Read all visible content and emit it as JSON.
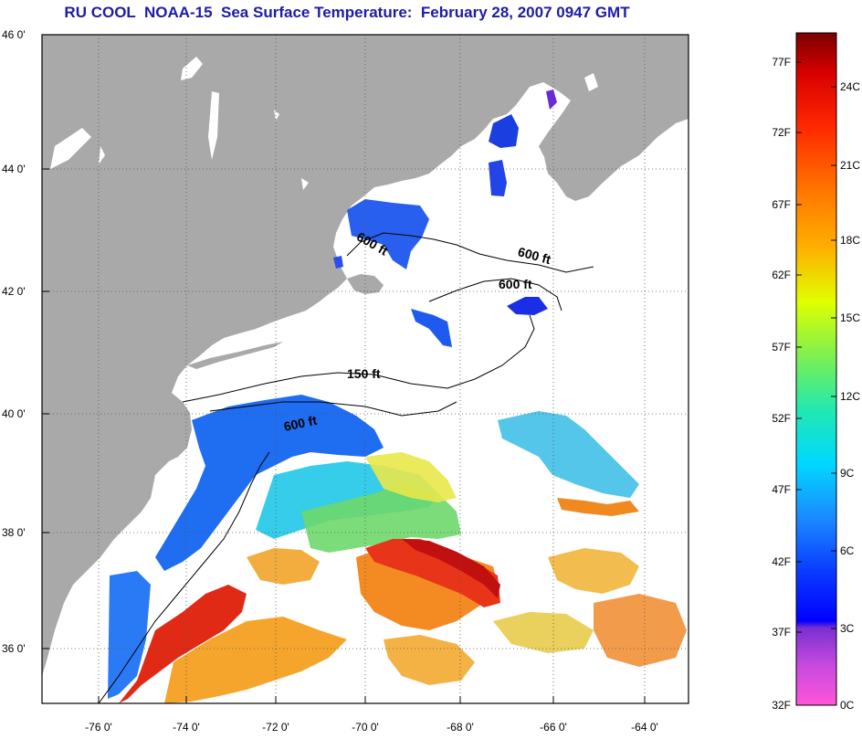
{
  "title": "RU COOL  NOAA-15  Sea Surface Temperature:  February 28, 2007 0947 GMT",
  "lat_labels": [
    "46 0'",
    "44 0'",
    "42 0'",
    "40 0'",
    "38 0'",
    "36 0'"
  ],
  "lon_labels": [
    "-76 0'",
    "-74 0'",
    "-72 0'",
    "-70 0'",
    "-68 0'",
    "-66 0'",
    "-64 0'"
  ],
  "contours": {
    "c1": "600 ft",
    "c2": "600 ft",
    "c3": "600 ft",
    "c4": "150 ft",
    "c5": "600 ft"
  },
  "colorbar": {
    "fahrenheit": [
      "77F",
      "72F",
      "67F",
      "62F",
      "57F",
      "52F",
      "47F",
      "42F",
      "37F",
      "32F"
    ],
    "celsius": [
      "24C",
      "21C",
      "18C",
      "15C",
      "12C",
      "9C",
      "6C",
      "3C",
      "0C"
    ]
  },
  "colors": {
    "land": "#a9a9a9",
    "ocean_no_data": "#ffffff",
    "title": "#1c1ca8"
  }
}
